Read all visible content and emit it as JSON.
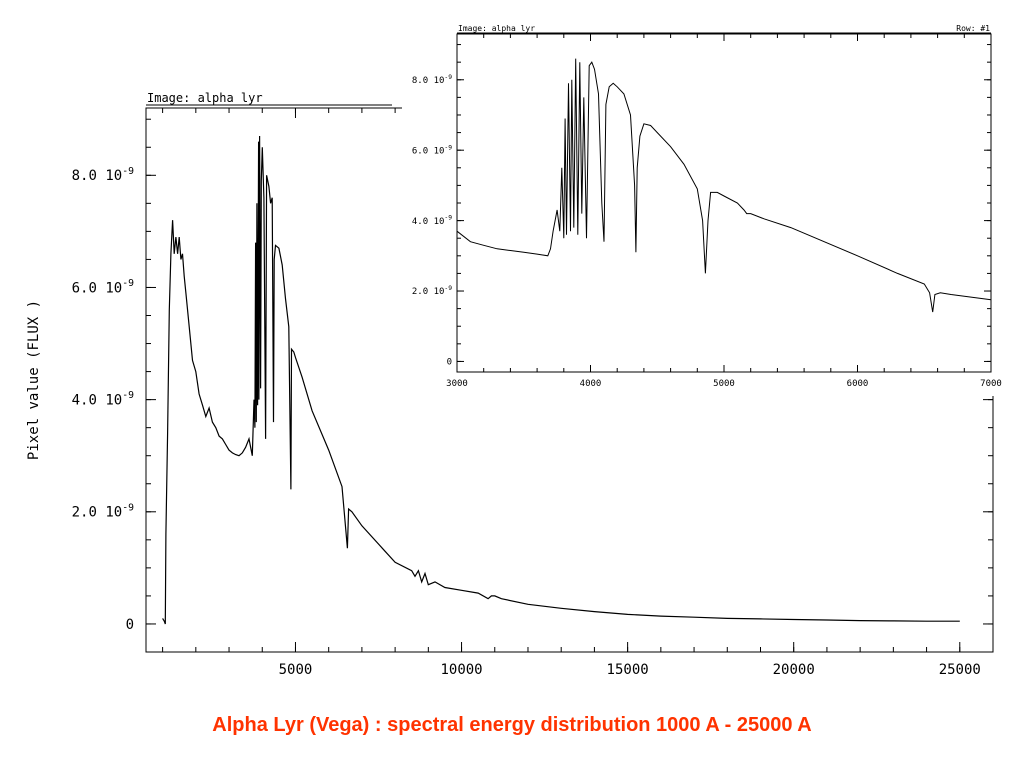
{
  "caption": "Alpha Lyr (Vega) : spectral energy distribution 1000 A  -  25000 A",
  "caption_color": "#ff3300",
  "chart_data": [
    {
      "type": "line",
      "image_label": "Image: alpha_lyr",
      "ylabel": "Pixel value (FLUX )",
      "xlim": [
        500,
        26000
      ],
      "ylim": [
        -5e-10,
        9.2e-09
      ],
      "xticks": [
        {
          "v": 5000,
          "label": "5000"
        },
        {
          "v": 10000,
          "label": "10000"
        },
        {
          "v": 15000,
          "label": "15000"
        },
        {
          "v": 20000,
          "label": "20000"
        },
        {
          "v": 25000,
          "label": "25000"
        }
      ],
      "yticks": [
        {
          "v": 0,
          "label": "0"
        },
        {
          "v": 2e-09,
          "label": "2.0"
        },
        {
          "v": 4e-09,
          "label": "4.0"
        },
        {
          "v": 6e-09,
          "label": "6.0"
        },
        {
          "v": 8e-09,
          "label": "8.0"
        }
      ],
      "ytick_exp": "10",
      "ytick_sup": "-9",
      "series": [
        {
          "x": [
            1000,
            1050,
            1080,
            1100,
            1150,
            1200,
            1250,
            1300,
            1350,
            1400,
            1450,
            1500,
            1550,
            1600,
            1650,
            1700,
            1800,
            1900,
            2000,
            2100,
            2200,
            2300,
            2400,
            2500,
            2600,
            2700,
            2800,
            2900,
            3000,
            3100,
            3200,
            3300,
            3400,
            3500,
            3600,
            3700,
            3750,
            3780,
            3800,
            3820,
            3840,
            3860,
            3890,
            3900,
            3920,
            3950,
            3970,
            4000,
            4050,
            4101,
            4130,
            4200,
            4250,
            4300,
            4340,
            4360,
            4400,
            4500,
            4600,
            4700,
            4800,
            4861,
            4880,
            4950,
            5000,
            5200,
            5500,
            6000,
            6400,
            6563,
            6600,
            6700,
            7000,
            8000,
            8500,
            8600,
            8700,
            8800,
            8900,
            9000,
            9200,
            9500,
            10000,
            10500,
            10800,
            10900,
            11000,
            11200,
            12000,
            13000,
            14000,
            15000,
            16000,
            17000,
            18000,
            19000,
            20000,
            21000,
            22000,
            23000,
            24000,
            25000
          ],
          "y": [
            1e-10,
            5e-11,
            0.0,
            1.6e-09,
            3.4e-09,
            5.6e-09,
            6.6e-09,
            7.2e-09,
            6.6e-09,
            6.9e-09,
            6.6e-09,
            6.9e-09,
            6.5e-09,
            6.6e-09,
            6.2e-09,
            5.9e-09,
            5.3e-09,
            4.7e-09,
            4.5e-09,
            4.1e-09,
            3.9e-09,
            3.7e-09,
            3.85e-09,
            3.6e-09,
            3.5e-09,
            3.35e-09,
            3.3e-09,
            3.2e-09,
            3.1e-09,
            3.05e-09,
            3.02e-09,
            3e-09,
            3.05e-09,
            3.15e-09,
            3.3e-09,
            3e-09,
            4e-09,
            3.5e-09,
            6.8e-09,
            3.6e-09,
            7.5e-09,
            3.9e-09,
            8.6e-09,
            4e-09,
            8.7e-09,
            4.2e-09,
            7.9e-09,
            8.5e-09,
            7.6e-09,
            3.3e-09,
            8e-09,
            7.8e-09,
            7.5e-09,
            7.6e-09,
            3.6e-09,
            6.5e-09,
            6.75e-09,
            6.7e-09,
            6.4e-09,
            5.8e-09,
            5.3e-09,
            2.4e-09,
            4.9e-09,
            4.85e-09,
            4.75e-09,
            4.4e-09,
            3.8e-09,
            3.1e-09,
            2.45e-09,
            1.35e-09,
            2.05e-09,
            2e-09,
            1.75e-09,
            1.1e-09,
            9.5e-10,
            8.5e-10,
            9.5e-10,
            7.5e-10,
            9e-10,
            7e-10,
            7.5e-10,
            6.5e-10,
            6e-10,
            5.5e-10,
            4.5e-10,
            5e-10,
            5e-10,
            4.5e-10,
            3.5e-10,
            2.8e-10,
            2.2e-10,
            1.7e-10,
            1.4e-10,
            1.2e-10,
            1e-10,
            9e-11,
            8e-11,
            7e-11,
            6e-11,
            5.5e-11,
            5e-11,
            5e-11
          ]
        }
      ]
    },
    {
      "type": "line",
      "image_label": "Image: alpha_lyr",
      "row_label": "Row: #1",
      "xlim": [
        3000,
        7000
      ],
      "ylim": [
        -3e-10,
        9.3e-09
      ],
      "xticks": [
        {
          "v": 3000,
          "label": "3000"
        },
        {
          "v": 4000,
          "label": "4000"
        },
        {
          "v": 5000,
          "label": "5000"
        },
        {
          "v": 6000,
          "label": "6000"
        },
        {
          "v": 7000,
          "label": "7000"
        }
      ],
      "yticks": [
        {
          "v": 0,
          "label": "0"
        },
        {
          "v": 2e-09,
          "label": "2.0"
        },
        {
          "v": 4e-09,
          "label": "4.0"
        },
        {
          "v": 6e-09,
          "label": "6.0"
        },
        {
          "v": 8e-09,
          "label": "8.0"
        }
      ],
      "ytick_exp": "10",
      "ytick_sup": "-9",
      "series": [
        {
          "x": [
            3000,
            3100,
            3200,
            3300,
            3400,
            3500,
            3600,
            3680,
            3700,
            3720,
            3750,
            3770,
            3785,
            3800,
            3810,
            3820,
            3835,
            3850,
            3860,
            3875,
            3889,
            3905,
            3920,
            3935,
            3950,
            3970,
            3990,
            4010,
            4030,
            4060,
            4085,
            4101,
            4115,
            4140,
            4170,
            4200,
            4250,
            4300,
            4330,
            4340,
            4350,
            4370,
            4400,
            4450,
            4500,
            4600,
            4700,
            4800,
            4840,
            4861,
            4880,
            4900,
            4950,
            5000,
            5100,
            5150,
            5170,
            5200,
            5300,
            5500,
            6000,
            6300,
            6500,
            6540,
            6563,
            6580,
            6620,
            6700,
            7000
          ],
          "y": [
            3.7e-09,
            3.4e-09,
            3.3e-09,
            3.2e-09,
            3.15e-09,
            3.1e-09,
            3.05e-09,
            3e-09,
            3.2e-09,
            3.7e-09,
            4.3e-09,
            3.7e-09,
            5.5e-09,
            3.5e-09,
            6.9e-09,
            3.6e-09,
            7.9e-09,
            3.7e-09,
            8e-09,
            3.8e-09,
            8.6e-09,
            3.6e-09,
            8.5e-09,
            4.2e-09,
            7.5e-09,
            3.5e-09,
            8.4e-09,
            8.5e-09,
            8.3e-09,
            7.6e-09,
            4.5e-09,
            3.4e-09,
            7.3e-09,
            7.8e-09,
            7.9e-09,
            7.8e-09,
            7.6e-09,
            7e-09,
            5e-09,
            3.1e-09,
            5.5e-09,
            6.4e-09,
            6.75e-09,
            6.7e-09,
            6.5e-09,
            6.1e-09,
            5.6e-09,
            4.9e-09,
            4e-09,
            2.5e-09,
            4e-09,
            4.8e-09,
            4.8e-09,
            4.7e-09,
            4.5e-09,
            4.3e-09,
            4.2e-09,
            4.2e-09,
            4.05e-09,
            3.8e-09,
            3e-09,
            2.5e-09,
            2.2e-09,
            1.95e-09,
            1.4e-09,
            1.9e-09,
            1.95e-09,
            1.9e-09,
            1.75e-09
          ]
        }
      ]
    }
  ]
}
